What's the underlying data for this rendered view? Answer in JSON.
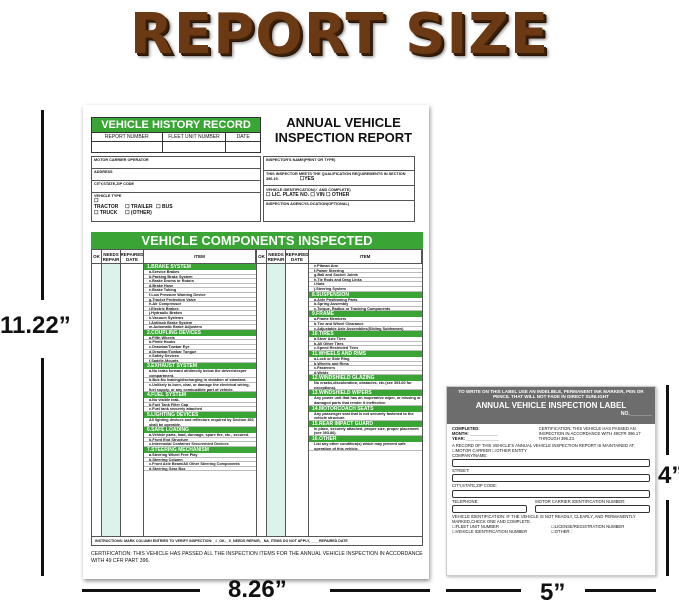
{
  "title": "REPORT SIZE",
  "dims": {
    "height": "11.22”",
    "width": "8.26”",
    "label_height": "4”",
    "label_width": "5”"
  },
  "report": {
    "history_title": "VEHICLE HISTORY RECORD",
    "history_cols": [
      "REPORT NUMBER",
      "FLEET UNIT NUMBER",
      "DATE"
    ],
    "title": "ANNUAL VEHICLE INSPECTION REPORT",
    "left_fields": [
      "MOTOR CARRIER OPERATOR",
      "ADDRESS",
      "CITY,STATE,ZIP CODE",
      "VEHICLE TYPE"
    ],
    "vehicle_types": [
      "☐ TRACTOR",
      "☐ TRAILER",
      "☐ BUS",
      "☐ TRUCK",
      "☐ (OTHER)"
    ],
    "right_fields": [
      "INSPECTOR'S NAME(PRINT OR TYPE)",
      "THIS INSPECTOR MEETS THE QUALIFICATION REQUIREMENTS IN SECTION 396.19.",
      "VEHICLE IDENTIFICATION(✓ AND COMPLETE)",
      "INSPECTION AGENCY/LOCATION(OPTIONAL)"
    ],
    "yes": "☐YES",
    "id_options": "☐ LIC. PLATE NO.   ☐ VIN   ☐ OTHER",
    "components_title": "VEHICLE COMPONENTS INSPECTED",
    "col_headers": [
      "OK",
      "NEEDS REPAIR",
      "REPAIRED DATE",
      "ITEM"
    ],
    "left_items": [
      {
        "s": "1.BRAKE SYSTEM"
      },
      "a.Service Brakes",
      "b.Parking Brake System",
      "c.Brake Drums or Rotors",
      "d.Brake Hose",
      "e.Brake Tubing",
      "f.Low Pressure Warning Device",
      "g.Tractor Protection Valve",
      "h.Air Compressor",
      "i.Electric Brakes",
      "j.Hydraulic Brakes",
      "k.Vacuum Systems",
      "l.Antilock Brake System",
      "m.Automatic Brake Adjusters",
      {
        "s": "2.COUPLING DEVICES"
      },
      "a.Fifth Wheels",
      "b.Pintle Hooks",
      "c.Drawbar/Towbar Eye",
      "d.Drawbar/Towbar Tongue",
      "e.Safety Devices",
      "f.Saddle-Mounts",
      {
        "s": "3.EXHAUST SYSTEM"
      },
      "a.No leaks forward of/directly below the driver/sleeper compartment.",
      "b.Bus:No leaking/discharging in violation of standard.",
      "c.Unlikely to burn, char, or damage the electrical wiring, fuel supply, or any combustible part of vehicle.",
      {
        "s": "4.FUEL SYSTEM"
      },
      "a.No visible leak.",
      "b.Fuel Tank Filler Cap",
      "c.Fuel tank securely attached",
      {
        "s": "5.LIGHTING DEVICES"
      },
      "All lighting devices and reflectors required by Section 393 shall be operable.",
      {
        "s": "6.SAFE LOADING"
      },
      "a.Vehicle parts, load, dunnage, spare tire, etc., secured.",
      "b.Front End Structure",
      "c.Intermodal Container Securement Devices",
      {
        "s": "7.STEERING MECHANISM"
      },
      "a.Steering Wheel Free Play",
      "b.Steering Column",
      "c.Front Axle Beam/All Other Steering Components",
      "d.Steering Gear Box"
    ],
    "right_items": [
      "e.Pitman Arm",
      "f.Power Steering",
      "g.Ball and Socket Joints",
      "h.Tie Rods and Drag Links",
      "i.Nuts",
      "j.Steering System",
      {
        "s": "8.SUSPENSION"
      },
      "a.Axle Positioning Parts",
      "b.Spring Assembly",
      "c.Torque, Radius or Tracking Components",
      {
        "s": "9.FRAME"
      },
      "a.Frame Members",
      "b.Tire and Wheel Clearance",
      "c.Adjustable Axle Assemblies(Sliding Subframes)",
      {
        "s": "10.TIRES"
      },
      "a.Steer Axle Tires",
      "b.All Other Tires",
      "c.Speed Restricted Tires",
      {
        "s": "11.WHEELS AND RIMS"
      },
      "a.Lock or Side Ring",
      "b.Wheels and Rims",
      "c.Fasteners",
      "d.Welds",
      {
        "s": "12.WINDSHIELD GLAZING"
      },
      "No cracks,discoloration, obstacles, etc.(see 393.60 for exceptions).",
      {
        "s": "13.WINDSHIELD WIPERS"
      },
      "Any power unit that has an inoperative wiper, or missing or damaged parts that render it ineffective.",
      {
        "s": "14.MOTORCOACH SEATS"
      },
      "Any passenger seat that is not securely fastened to the vehicle structure.",
      {
        "s": "15.REAR IMPACT GUARD"
      },
      "In place, securely attached, proper size, proper placement (see 393.86).",
      {
        "s": "16.OTHER"
      },
      "List any other condition(s) which may prevent safe operation of this vehicle."
    ],
    "instructions": "INSTRUCTIONS: MARK COLUMN ENTRIES TO VERIFY INSPECTION: _√_OK, _X_NEEDS REPAIR, _NA_ITEMS DO NOT APPLY, ____REPAIRED DATE",
    "certification": "CERTIFICATION: THIS VEHICLE HAS PASSED ALL THE INSPECTION ITEMS FOR THE ANNUAL VEHICLE INSPECTION IN ACCORDANCE WITH 49 CFR PART 396."
  },
  "label": {
    "warning": "TO WRITE ON THIS LABEL USE AN INDELIBLE, PERMANENT INK MARKER, PEN OR PENCIL THAT WILL NOT FADE IN DIRECT SUNLIGHT",
    "title": "ANNUAL VEHICLE INSPECTION LABEL",
    "no": "NO.________",
    "completed": "COMPLETED:",
    "month": "MONTH: ____________",
    "year": "YEAR: ______________",
    "certification": "CERTIFICATION: THIS VEHICLE HAS PASSED AN INSPECTION IN ACCORDANCE WITH 49CFR 396.17 THROUGH 396.23.",
    "record": "A RECORD OF THIS VEHICLE'S ANNUAL VEHICLE INSPECTION REPORT IS MAINTAINED AT: ☐MOTOR CARRIER   ☐OTHER ENTITY",
    "company": "COMPANY/NAME:",
    "street": "STREET:",
    "city": "CITY,STATE,ZIP CODE:",
    "telephone": "TELEPHONE:",
    "carrier_id": "MOTOR CARRIER IDENTIFICATION NUMBER:",
    "vehicle_id": "VEHICLE IDENTIFICATION: IF THE VEHICLE IS NOT READILY, CLEARLY, AND PERMANENTLY MARKED,CHECK ONE AND COMPLETE.",
    "id_options": [
      "☐FLEET UNIT NUMBER",
      "☐LICENSE/REGISTRATION NUMBER",
      "☐VEHICLE IDENTIFICATION NUMBER",
      "☐OTHER :"
    ]
  }
}
